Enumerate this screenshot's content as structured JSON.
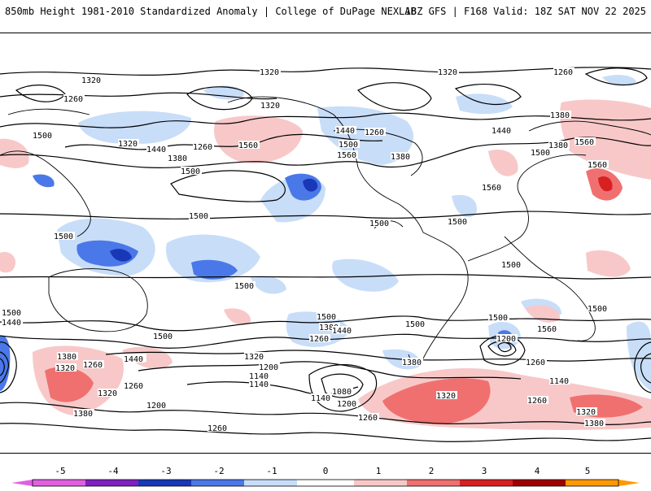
{
  "header": {
    "title": "850mb Height 1981-2010 Standardized Anomaly | College of DuPage NEXLAB",
    "run_info": "18Z GFS | F168 Valid: 18Z SAT NOV 22 2025"
  },
  "colors": {
    "neg5": "#e060e0",
    "neg4": "#8020c0",
    "neg3": "#1838b8",
    "neg2": "#4a78e8",
    "neg1": "#c8ddf8",
    "pos1": "#f8c8c8",
    "pos2": "#f07070",
    "pos3": "#d82020",
    "pos4": "#a00000",
    "pos5": "#ff9900"
  },
  "contours": {
    "labels": [
      "1320",
      "1320",
      "1260",
      "1320",
      "1260",
      "1320",
      "1260",
      "1380",
      "1500",
      "1440",
      "1380",
      "1560",
      "1500",
      "1320",
      "1440",
      "1560",
      "1440",
      "1560",
      "1260",
      "1380",
      "1380",
      "1500",
      "1500",
      "1560",
      "1500",
      "1560",
      "1500",
      "1500",
      "1500",
      "1500",
      "1500",
      "1500",
      "1500",
      "1500",
      "1440",
      "1380",
      "1560",
      "1500",
      "1500",
      "1440",
      "1380",
      "1260",
      "1320",
      "1440",
      "1500",
      "1320",
      "1200",
      "1260",
      "1380",
      "1320",
      "1200",
      "1140",
      "1140",
      "1080",
      "1140",
      "1200",
      "1260",
      "1320",
      "1260",
      "1260",
      "1380",
      "1200",
      "1260",
      "1320",
      "1260",
      "1140",
      "1440",
      "1380",
      "1500"
    ]
  },
  "colorbar": {
    "ticks": [
      "-5",
      "-4",
      "-3",
      "-2",
      "-1",
      "0",
      "1",
      "2",
      "3",
      "4",
      "5"
    ]
  }
}
